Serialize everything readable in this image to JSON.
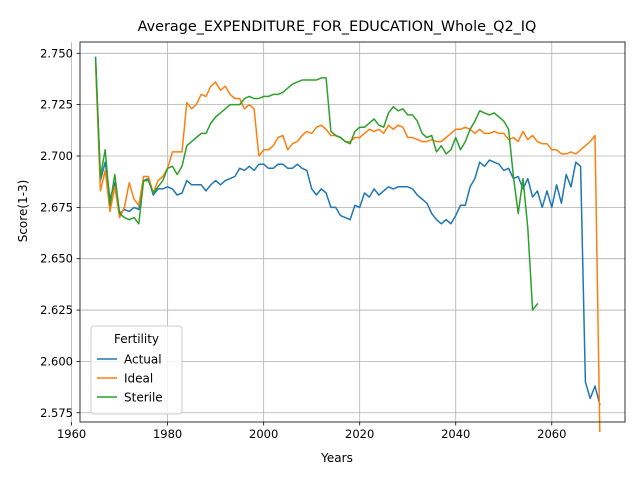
{
  "chart_data": {
    "type": "line",
    "title": "Average_EXPENDITURE_FOR_EDUCATION_Whole_Q2_IQ",
    "xlabel": "Years",
    "ylabel": "Score(1-3)",
    "xlim": [
      1961.75,
      2075.25
    ],
    "ylim": [
      2.5705,
      2.7555
    ],
    "xticks": [
      1960,
      1980,
      2000,
      2020,
      2040,
      2060
    ],
    "yticks": [
      2.575,
      2.6,
      2.625,
      2.65,
      2.675,
      2.7,
      2.725,
      2.75
    ],
    "ytick_labels": [
      "2.575",
      "2.600",
      "2.625",
      "2.650",
      "2.675",
      "2.700",
      "2.725",
      "2.750"
    ],
    "grid": true,
    "legend": {
      "title": "Fertility",
      "position": "lower-left"
    },
    "series": [
      {
        "name": "Actual",
        "color": "#1f77b4",
        "x": [
          1965,
          1966,
          1967,
          1968,
          1969,
          1970,
          1971,
          1972,
          1973,
          1974,
          1975,
          1976,
          1977,
          1978,
          1979,
          1980,
          1981,
          1982,
          1983,
          1984,
          1985,
          1986,
          1987,
          1988,
          1989,
          1990,
          1991,
          1992,
          1993,
          1994,
          1995,
          1996,
          1997,
          1998,
          1999,
          2000,
          2001,
          2002,
          2003,
          2004,
          2005,
          2006,
          2007,
          2008,
          2009,
          2010,
          2011,
          2012,
          2013,
          2014,
          2015,
          2016,
          2017,
          2018,
          2019,
          2020,
          2021,
          2022,
          2023,
          2024,
          2025,
          2026,
          2027,
          2028,
          2029,
          2030,
          2031,
          2032,
          2033,
          2034,
          2035,
          2036,
          2037,
          2038,
          2039,
          2040,
          2041,
          2042,
          2043,
          2044,
          2045,
          2046,
          2047,
          2048,
          2049,
          2050,
          2051,
          2052,
          2053,
          2054,
          2055,
          2056,
          2057,
          2058,
          2059,
          2060,
          2061,
          2062,
          2063,
          2064,
          2065,
          2066,
          2067,
          2068,
          2069,
          2070
        ],
        "y": [
          2.748,
          2.688,
          2.697,
          2.679,
          2.687,
          2.672,
          2.674,
          2.673,
          2.675,
          2.674,
          2.688,
          2.689,
          2.681,
          2.684,
          2.684,
          2.685,
          2.684,
          2.681,
          2.682,
          2.688,
          2.686,
          2.686,
          2.686,
          2.683,
          2.686,
          2.688,
          2.686,
          2.688,
          2.689,
          2.69,
          2.694,
          2.693,
          2.695,
          2.693,
          2.696,
          2.696,
          2.694,
          2.694,
          2.696,
          2.696,
          2.694,
          2.694,
          2.696,
          2.694,
          2.693,
          2.684,
          2.681,
          2.684,
          2.682,
          2.675,
          2.675,
          2.671,
          2.67,
          2.669,
          2.676,
          2.675,
          2.682,
          2.68,
          2.684,
          2.681,
          2.683,
          2.685,
          2.684,
          2.685,
          2.685,
          2.685,
          2.684,
          2.681,
          2.679,
          2.677,
          2.672,
          2.669,
          2.667,
          2.669,
          2.667,
          2.671,
          2.676,
          2.676,
          2.685,
          2.689,
          2.697,
          2.695,
          2.698,
          2.697,
          2.696,
          2.693,
          2.694,
          2.689,
          2.69,
          2.684,
          2.689,
          2.68,
          2.683,
          2.675,
          2.683,
          2.675,
          2.686,
          2.677,
          2.691,
          2.685,
          2.697,
          2.695,
          2.59,
          2.582,
          2.588,
          2.579
        ]
      },
      {
        "name": "Ideal",
        "color": "#ff7f0e",
        "x": [
          1965,
          1966,
          1967,
          1968,
          1969,
          1970,
          1971,
          1972,
          1973,
          1974,
          1975,
          1976,
          1977,
          1978,
          1979,
          1980,
          1981,
          1982,
          1983,
          1984,
          1985,
          1986,
          1987,
          1988,
          1989,
          1990,
          1991,
          1992,
          1993,
          1994,
          1995,
          1996,
          1997,
          1998,
          1999,
          2000,
          2001,
          2002,
          2003,
          2004,
          2005,
          2006,
          2007,
          2008,
          2009,
          2010,
          2011,
          2012,
          2013,
          2014,
          2015,
          2016,
          2017,
          2018,
          2019,
          2020,
          2021,
          2022,
          2023,
          2024,
          2025,
          2026,
          2027,
          2028,
          2029,
          2030,
          2031,
          2032,
          2033,
          2034,
          2035,
          2036,
          2037,
          2038,
          2039,
          2040,
          2041,
          2042,
          2043,
          2044,
          2045,
          2046,
          2047,
          2048,
          2049,
          2050,
          2051,
          2052,
          2053,
          2054,
          2055,
          2056,
          2057,
          2058,
          2059,
          2060,
          2061,
          2062,
          2063,
          2064,
          2065,
          2066,
          2067,
          2068,
          2069,
          2070
        ],
        "y": [
          2.745,
          2.683,
          2.693,
          2.673,
          2.685,
          2.67,
          2.675,
          2.687,
          2.679,
          2.676,
          2.69,
          2.69,
          2.682,
          2.688,
          2.69,
          2.694,
          2.702,
          2.702,
          2.702,
          2.726,
          2.723,
          2.725,
          2.73,
          2.729,
          2.734,
          2.736,
          2.732,
          2.734,
          2.73,
          2.728,
          2.728,
          2.723,
          2.725,
          2.723,
          2.7,
          2.703,
          2.703,
          2.705,
          2.709,
          2.71,
          2.703,
          2.706,
          2.707,
          2.71,
          2.712,
          2.711,
          2.714,
          2.715,
          2.713,
          2.71,
          2.71,
          2.709,
          2.707,
          2.707,
          2.709,
          2.709,
          2.711,
          2.713,
          2.712,
          2.713,
          2.711,
          2.715,
          2.713,
          2.715,
          2.714,
          2.709,
          2.709,
          2.708,
          2.707,
          2.707,
          2.708,
          2.707,
          2.707,
          2.709,
          2.711,
          2.713,
          2.713,
          2.714,
          2.713,
          2.711,
          2.713,
          2.711,
          2.711,
          2.712,
          2.711,
          2.711,
          2.708,
          2.709,
          2.707,
          2.712,
          2.708,
          2.71,
          2.707,
          2.706,
          2.706,
          2.703,
          2.703,
          2.701,
          2.701,
          2.702,
          2.701,
          2.703,
          2.705,
          2.707,
          2.71,
          2.566
        ]
      },
      {
        "name": "Sterile",
        "color": "#2ca02c",
        "x": [
          1965,
          1966,
          1967,
          1968,
          1969,
          1970,
          1971,
          1972,
          1973,
          1974,
          1975,
          1976,
          1977,
          1978,
          1979,
          1980,
          1981,
          1982,
          1983,
          1984,
          1985,
          1986,
          1987,
          1988,
          1989,
          1990,
          1991,
          1992,
          1993,
          1994,
          1995,
          1996,
          1997,
          1998,
          1999,
          2000,
          2001,
          2002,
          2003,
          2004,
          2005,
          2006,
          2007,
          2008,
          2009,
          2010,
          2011,
          2012,
          2013,
          2014,
          2015,
          2016,
          2017,
          2018,
          2019,
          2020,
          2021,
          2022,
          2023,
          2024,
          2025,
          2026,
          2027,
          2028,
          2029,
          2030,
          2031,
          2032,
          2033,
          2034,
          2035,
          2036,
          2037,
          2038,
          2039,
          2040,
          2041,
          2042,
          2043,
          2044,
          2045,
          2046,
          2047,
          2048,
          2049,
          2050,
          2051,
          2052,
          2053,
          2054,
          2055,
          2056,
          2057
        ],
        "y": [
          2.747,
          2.69,
          2.703,
          2.676,
          2.691,
          2.672,
          2.67,
          2.669,
          2.67,
          2.667,
          2.688,
          2.688,
          2.682,
          2.685,
          2.688,
          2.694,
          2.695,
          2.691,
          2.695,
          2.705,
          2.707,
          2.709,
          2.711,
          2.711,
          2.716,
          2.719,
          2.721,
          2.723,
          2.725,
          2.725,
          2.725,
          2.728,
          2.729,
          2.728,
          2.728,
          2.729,
          2.729,
          2.73,
          2.73,
          2.731,
          2.733,
          2.735,
          2.736,
          2.737,
          2.737,
          2.737,
          2.737,
          2.738,
          2.738,
          2.712,
          2.71,
          2.709,
          2.707,
          2.706,
          2.712,
          2.714,
          2.714,
          2.716,
          2.718,
          2.715,
          2.714,
          2.721,
          2.724,
          2.722,
          2.723,
          2.72,
          2.72,
          2.717,
          2.711,
          2.709,
          2.71,
          2.702,
          2.705,
          2.701,
          2.703,
          2.709,
          2.703,
          2.707,
          2.713,
          2.717,
          2.722,
          2.721,
          2.72,
          2.721,
          2.719,
          2.717,
          2.713,
          2.69,
          2.672,
          2.689,
          2.665,
          2.625,
          2.628
        ]
      }
    ]
  }
}
